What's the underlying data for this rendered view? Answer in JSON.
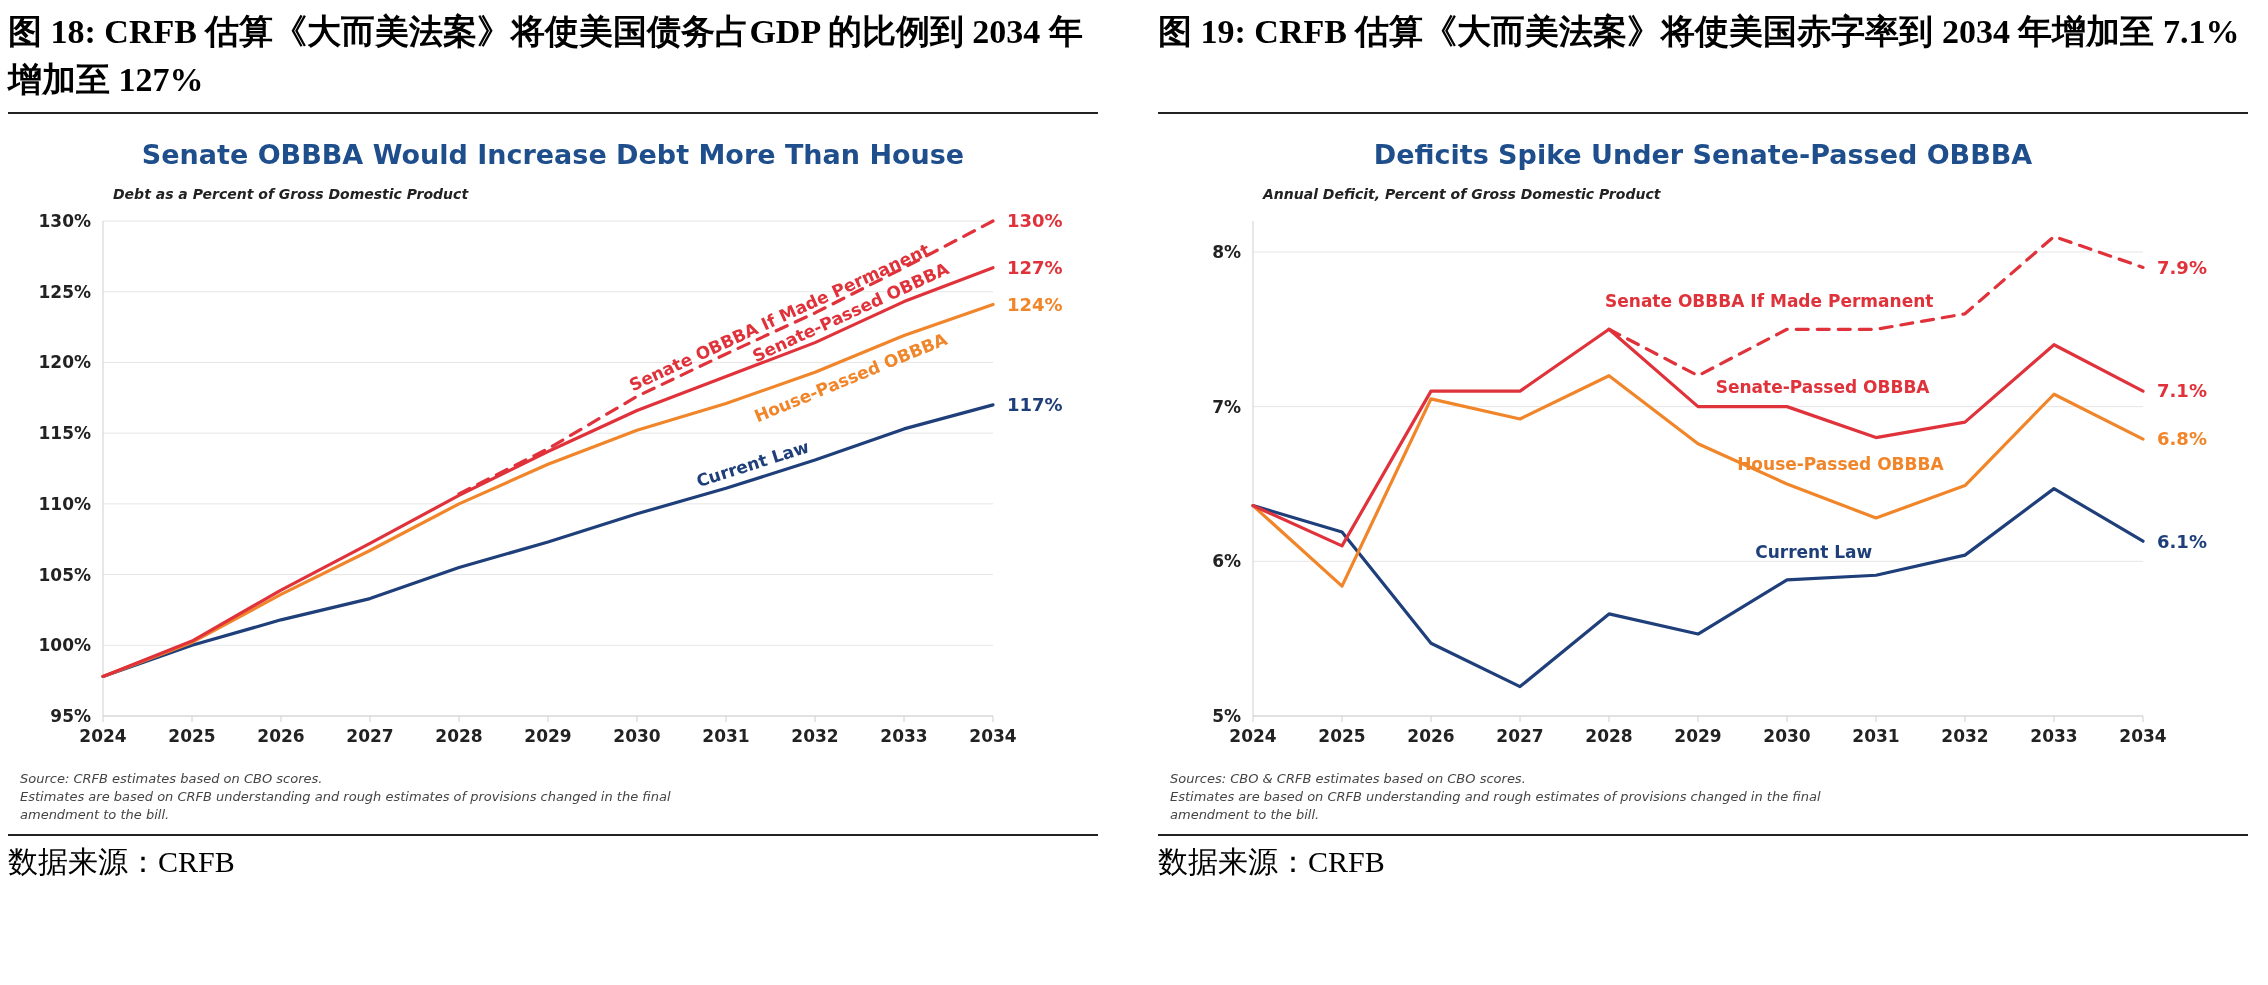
{
  "chart_data": [
    {
      "type": "line",
      "title": "图 18: CRFB 估算《大而美法案》将使美国债务占GDP 的比例到 2034 年增加至 127%",
      "subtitle": "Senate OBBBA Would Increase Debt More Than House",
      "ylabel": "Debt as a Percent of Gross Domestic Product",
      "categories": [
        "2024",
        "2025",
        "2026",
        "2027",
        "2028",
        "2029",
        "2030",
        "2031",
        "2032",
        "2033",
        "2034"
      ],
      "ylim": [
        95,
        130
      ],
      "yticks": [
        {
          "value": 95,
          "label": "95%"
        },
        {
          "value": 100,
          "label": "100%"
        },
        {
          "value": 105,
          "label": "105%"
        },
        {
          "value": 110,
          "label": "110%"
        },
        {
          "value": 115,
          "label": "115%"
        },
        {
          "value": 120,
          "label": "120%"
        },
        {
          "value": 125,
          "label": "125%"
        },
        {
          "value": 130,
          "label": "130%"
        }
      ],
      "grid": "y",
      "marker": "none",
      "series": [
        {
          "name": "Current Law",
          "color": "#1f3f7a",
          "line_style": "solid",
          "values": [
            97.8,
            100.0,
            101.8,
            103.3,
            105.5,
            107.3,
            109.3,
            111.1,
            113.1,
            115.3,
            117.0
          ],
          "value_labels": [
            null,
            null,
            null,
            null,
            null,
            null,
            null,
            null,
            null,
            null,
            "117%"
          ]
        },
        {
          "name": "House-Passed OBBBA",
          "color": "#f0852a",
          "line_style": "solid",
          "values": [
            97.8,
            100.2,
            103.6,
            106.7,
            110.0,
            112.8,
            115.2,
            117.1,
            119.3,
            121.9,
            124.1
          ],
          "value_labels": [
            null,
            null,
            null,
            null,
            null,
            null,
            null,
            null,
            null,
            null,
            "124%"
          ]
        },
        {
          "name": "Senate-Passed OBBBA",
          "color": "#e0323a",
          "line_style": "solid",
          "values": [
            97.8,
            100.3,
            103.9,
            107.2,
            110.6,
            113.7,
            116.6,
            119.0,
            121.4,
            124.3,
            126.7
          ],
          "value_labels": [
            null,
            null,
            null,
            null,
            null,
            null,
            null,
            null,
            null,
            null,
            "127%"
          ]
        },
        {
          "name": "Senate OBBBA If Made Permanent",
          "color": "#e0323a",
          "line_style": "dashed",
          "values": [
            null,
            null,
            null,
            null,
            110.7,
            113.9,
            117.6,
            120.6,
            123.5,
            126.7,
            130.0
          ],
          "value_labels": [
            null,
            null,
            null,
            null,
            null,
            null,
            null,
            null,
            null,
            null,
            "130%"
          ]
        }
      ],
      "annotations": [
        "Source: CRFB estimates based on CBO scores.",
        "Estimates are based on CRFB understanding and rough estimates of provisions changed in the final amendment to the bill.",
        "数据来源：CRFB"
      ]
    },
    {
      "type": "line",
      "title": "图 19: CRFB 估算《大而美法案》将使美国赤字率到 2034 年增加至 7.1%",
      "subtitle": "Deficits Spike Under Senate-Passed OBBBA",
      "ylabel": "Annual Deficit, Percent of Gross Domestic Product",
      "categories": [
        "2024",
        "2025",
        "2026",
        "2027",
        "2028",
        "2029",
        "2030",
        "2031",
        "2032",
        "2033",
        "2034"
      ],
      "ylim": [
        5,
        8.2
      ],
      "yticks": [
        {
          "value": 5,
          "label": "5%"
        },
        {
          "value": 6,
          "label": "6%"
        },
        {
          "value": 7,
          "label": "7%"
        },
        {
          "value": 8,
          "label": "8%"
        }
      ],
      "grid": "y",
      "marker": "none",
      "series": [
        {
          "name": "Current Law",
          "color": "#1f3f7a",
          "line_style": "solid",
          "values": [
            6.36,
            6.19,
            5.47,
            5.19,
            5.66,
            5.53,
            5.88,
            5.91,
            6.04,
            6.47,
            6.13
          ],
          "value_labels": [
            null,
            null,
            null,
            null,
            null,
            null,
            null,
            null,
            null,
            null,
            "6.1%"
          ]
        },
        {
          "name": "House-Passed OBBBA",
          "color": "#f0852a",
          "line_style": "solid",
          "values": [
            6.36,
            5.84,
            7.05,
            6.92,
            7.2,
            6.76,
            6.5,
            6.28,
            6.49,
            7.08,
            6.79
          ],
          "value_labels": [
            null,
            null,
            null,
            null,
            null,
            null,
            null,
            null,
            null,
            null,
            "6.8%"
          ]
        },
        {
          "name": "Senate-Passed OBBBA",
          "color": "#e0323a",
          "line_style": "solid",
          "values": [
            6.36,
            6.1,
            7.1,
            7.1,
            7.5,
            7.0,
            7.0,
            6.8,
            6.9,
            7.4,
            7.1
          ],
          "value_labels": [
            null,
            null,
            null,
            null,
            null,
            null,
            null,
            null,
            null,
            null,
            "7.1%"
          ]
        },
        {
          "name": "Senate OBBBA If Made Permanent",
          "color": "#e0323a",
          "line_style": "dashed",
          "values": [
            null,
            null,
            null,
            null,
            7.5,
            7.2,
            7.5,
            7.5,
            7.6,
            8.1,
            7.9
          ],
          "value_labels": [
            null,
            null,
            null,
            null,
            null,
            null,
            null,
            null,
            null,
            null,
            "7.9%"
          ]
        }
      ],
      "annotations": [
        "Sources: CBO & CRFB estimates based on CBO scores.",
        "Estimates are based on CRFB understanding and rough estimates of provisions changed in the final amendment to the bill.",
        "数据来源：CRFB"
      ]
    }
  ]
}
